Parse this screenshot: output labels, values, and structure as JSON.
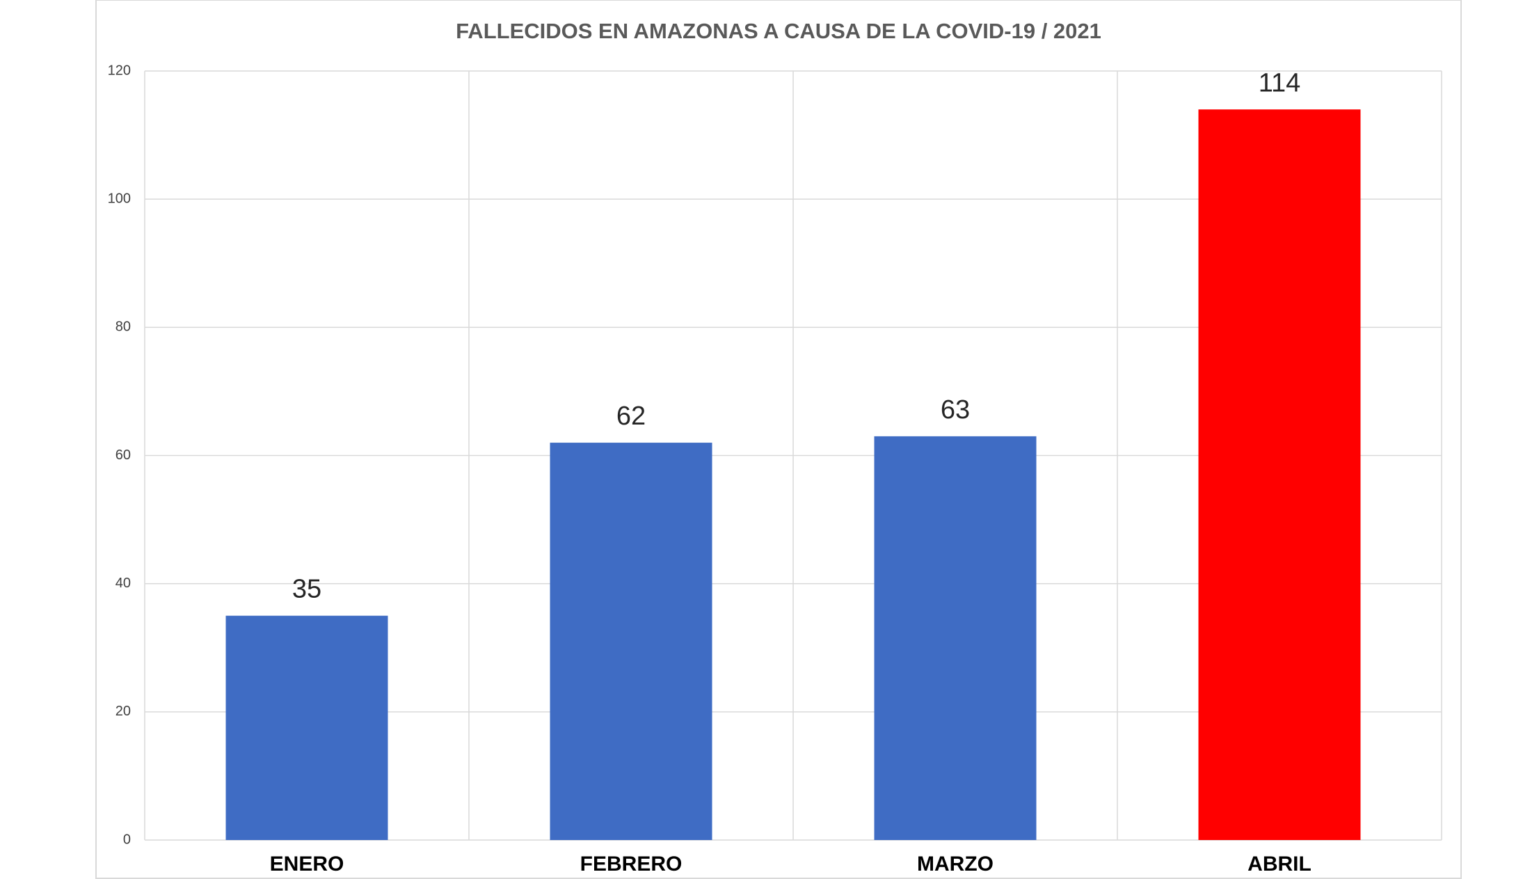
{
  "chart_data": {
    "type": "bar",
    "title": "FALLECIDOS EN AMAZONAS A CAUSA DE LA COVID-19 / 2021",
    "categories": [
      "ENERO",
      "FEBRERO",
      "MARZO",
      "ABRIL"
    ],
    "values": [
      35,
      62,
      63,
      114
    ],
    "colors": [
      "#3f6cc4",
      "#3f6cc4",
      "#3f6cc4",
      "#ff0000"
    ],
    "ylim": [
      0,
      120
    ],
    "yticks": [
      0,
      20,
      40,
      60,
      80,
      100,
      120
    ],
    "grid": true
  }
}
